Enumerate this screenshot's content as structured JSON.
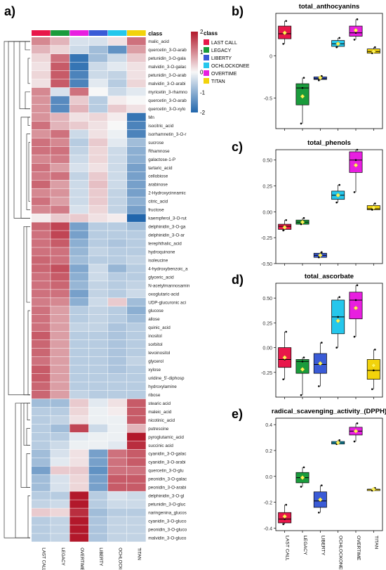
{
  "figure": {
    "panel_labels": [
      "a)",
      "b)",
      "c)",
      "d)",
      "e)"
    ],
    "groups": [
      "LAST CALL",
      "LEGACY",
      "LIBERTY",
      "OCHLOCKONEE",
      "OVERTIME",
      "TITAN"
    ],
    "group_colors": {
      "LAST CALL": "#E8174A",
      "LEGACY": "#1A9B3C",
      "LIBERTY": "#3A5BD6",
      "OCHLOCKONEE": "#25C7EC",
      "OVERTIME": "#E81FE0",
      "TITAN": "#F2D30B"
    },
    "legend_title": "class",
    "colorbar": {
      "ticks": [
        "2",
        "1",
        "0",
        "-1",
        "-2"
      ],
      "high": "#B2182B",
      "mid": "#F7F7F7",
      "low": "#2166AC"
    }
  },
  "chart_data": [
    {
      "type": "heatmap",
      "panel": "a)",
      "columns": [
        "LAST CALL",
        "LEGACY",
        "OVERTIME",
        "LIBERTY",
        "OCHLOCKONEE",
        "TITAN"
      ],
      "column_annotation_label": "class",
      "column_annotation_colors": [
        "#E8174A",
        "#1A9B3C",
        "#E81FE0",
        "#3A5BD6",
        "#25C7EC",
        "#F2D30B"
      ],
      "rows": [
        "malic_acid",
        "quercetin_3-O-arab",
        "petunidin_3-O-gala",
        "malvidin_3-O-galac",
        "petunidin_3-O-arab",
        "malvidin_3-O-arabi",
        "myricetin_3-rhamno",
        "quercetin_3-O-arab",
        "quercetin_3-O-xylo",
        "Mn",
        "isocitric_acid",
        "isorhamnetin_3-O-r",
        "sucrose",
        "Rhamnose",
        "galactose-1-P",
        "tartaric_acid",
        "cellobiose",
        "arabinose",
        "2-Hydroxycinnamic",
        "citric_acid",
        "fructose",
        "kaempferol_3-O-rut",
        "delphinidin_3-O-ga",
        "delphinidin_3-O-ar",
        "terephthalic_acid",
        "hydroquinone",
        "isoleucine",
        "4-hydroxybenzoic_a",
        "glyceric_acid",
        "N-acetylmannosamin",
        "oxoglutaric-acid",
        "UDP-glucuronic aci",
        "glucose",
        "allose",
        "quinic_acid",
        "inositol",
        "sorbitol",
        "levoinositol",
        "glycerol",
        "xylose",
        "uridine_5'-diphosp",
        "hydroxylamine",
        "ribose",
        "stearic acid",
        "maleic_acid",
        "nicotinic_acid",
        "putrescine",
        "pyroglutamic_acid",
        "succinic acid",
        "cyanidin_3-O-galac",
        "cyanidin_3-O-arabi",
        "quercetin_3-O-glu",
        "peonidin_3-O-galac",
        "peonidin_3-O-arabi",
        "delphinidin_3-O-gl",
        "petunidin_3-O-gluc",
        "naringenina_glucos",
        "cyanidin_3-O-gluco",
        "peonidin_3-O-gluco",
        "malvidin_3-O-gluco"
      ],
      "values": [
        [
          1.0,
          0.6,
          -0.3,
          -0.3,
          0.2,
          1.2
        ],
        [
          0.6,
          0.3,
          -0.4,
          -0.8,
          -1.4,
          0.8
        ],
        [
          0.3,
          1.2,
          -1.8,
          -0.8,
          -0.4,
          0.4
        ],
        [
          0.2,
          1.4,
          -1.8,
          -0.4,
          -0.2,
          0.2
        ],
        [
          0.3,
          1.4,
          -1.6,
          -0.4,
          -0.5,
          0.2
        ],
        [
          0.2,
          1.4,
          -1.6,
          -0.2,
          -0.6,
          0.3
        ],
        [
          1.0,
          -0.3,
          1.2,
          0.0,
          -0.4,
          -0.2
        ],
        [
          0.9,
          -1.5,
          0.4,
          -0.6,
          0.1,
          0.0
        ],
        [
          0.9,
          -1.5,
          0.6,
          -0.6,
          0.4,
          0.2
        ],
        [
          0.9,
          0.6,
          0.2,
          0.3,
          0.1,
          -1.8
        ],
        [
          1.2,
          0.6,
          0.4,
          0.2,
          0.0,
          -1.6
        ],
        [
          0.9,
          1.2,
          -0.4,
          0.2,
          -0.1,
          -1.6
        ],
        [
          1.2,
          1.0,
          -0.6,
          0.4,
          -0.2,
          -0.8
        ],
        [
          1.2,
          1.2,
          -0.5,
          0.3,
          -0.4,
          -1.0
        ],
        [
          1.0,
          1.1,
          -0.4,
          0.3,
          -0.4,
          -1.0
        ],
        [
          1.2,
          0.8,
          -0.3,
          0.2,
          -0.4,
          -1.2
        ],
        [
          1.1,
          1.2,
          -0.5,
          0.4,
          -0.4,
          -1.2
        ],
        [
          1.3,
          0.8,
          -0.4,
          0.5,
          -0.4,
          -1.2
        ],
        [
          1.0,
          0.9,
          -0.4,
          0.4,
          -0.5,
          -1.2
        ],
        [
          1.2,
          0.8,
          -0.4,
          0.4,
          -0.5,
          -1.0
        ],
        [
          1.0,
          1.1,
          -0.3,
          0.3,
          -0.5,
          -1.2
        ],
        [
          0.1,
          0.4,
          0.4,
          0.2,
          0.1,
          -2.0
        ],
        [
          1.3,
          1.6,
          -1.2,
          -0.6,
          -0.6,
          -0.8
        ],
        [
          1.2,
          1.6,
          -1.2,
          -0.6,
          -0.6,
          -0.6
        ],
        [
          1.2,
          1.4,
          -1.0,
          -0.6,
          -0.7,
          -0.6
        ],
        [
          1.2,
          1.2,
          -0.9,
          -0.5,
          -0.6,
          -0.6
        ],
        [
          1.3,
          1.2,
          -0.8,
          -0.6,
          -0.6,
          -0.5
        ],
        [
          1.3,
          1.5,
          -1.1,
          -0.4,
          -0.9,
          -0.6
        ],
        [
          1.2,
          1.4,
          -1.0,
          -0.4,
          -0.6,
          -0.6
        ],
        [
          1.2,
          1.3,
          -0.9,
          -0.5,
          -0.6,
          -0.5
        ],
        [
          1.2,
          1.2,
          -1.2,
          -0.5,
          -0.6,
          -0.4
        ],
        [
          1.1,
          1.0,
          -1.0,
          -0.4,
          0.4,
          -0.8
        ],
        [
          1.2,
          0.8,
          -0.6,
          -0.5,
          -0.6,
          -1.0
        ],
        [
          1.2,
          0.8,
          -0.6,
          -0.5,
          -0.6,
          -0.8
        ],
        [
          1.2,
          0.8,
          -0.5,
          -0.5,
          -0.7,
          -0.6
        ],
        [
          1.4,
          0.8,
          -0.6,
          -0.6,
          -0.7,
          -0.6
        ],
        [
          1.3,
          0.8,
          -0.6,
          -0.6,
          -0.7,
          -0.6
        ],
        [
          1.3,
          0.8,
          -0.6,
          -0.6,
          -0.7,
          -0.6
        ],
        [
          1.2,
          0.8,
          -0.6,
          -0.6,
          -0.7,
          -0.5
        ],
        [
          1.4,
          0.8,
          -0.6,
          -0.6,
          -0.7,
          -0.6
        ],
        [
          1.4,
          0.8,
          -0.6,
          -0.6,
          -0.6,
          -0.6
        ],
        [
          1.3,
          0.8,
          -0.6,
          -0.6,
          -0.6,
          -0.6
        ],
        [
          1.3,
          0.8,
          -0.5,
          -0.6,
          -0.6,
          -0.6
        ],
        [
          -0.8,
          -0.8,
          0.4,
          -0.2,
          0.2,
          1.4
        ],
        [
          -0.6,
          -0.6,
          0.3,
          -0.1,
          0.1,
          1.4
        ],
        [
          -0.6,
          -0.5,
          0.2,
          -0.1,
          -0.1,
          1.4
        ],
        [
          -0.6,
          -0.8,
          1.6,
          -0.4,
          -0.1,
          0.6
        ],
        [
          -0.6,
          -0.6,
          -0.2,
          -0.1,
          -0.1,
          2.0
        ],
        [
          -0.6,
          -0.4,
          -0.1,
          -0.1,
          -0.2,
          1.8
        ],
        [
          -0.8,
          -0.3,
          0.2,
          -1.2,
          1.2,
          1.4
        ],
        [
          -0.8,
          -0.2,
          0.2,
          -1.2,
          1.2,
          1.4
        ],
        [
          -1.2,
          0.4,
          0.4,
          -1.4,
          1.2,
          1.2
        ],
        [
          -0.8,
          -0.3,
          0.3,
          -1.2,
          1.4,
          1.4
        ],
        [
          -0.8,
          -0.3,
          0.3,
          -1.2,
          1.4,
          1.4
        ],
        [
          -0.6,
          -0.6,
          2.0,
          -0.6,
          -0.3,
          -0.4
        ],
        [
          -0.5,
          -0.4,
          2.0,
          -0.6,
          -0.4,
          -0.4
        ],
        [
          0.4,
          0.3,
          1.8,
          -0.8,
          -0.6,
          -0.6
        ],
        [
          -0.6,
          -0.5,
          2.0,
          -0.7,
          -0.5,
          -0.5
        ],
        [
          -0.6,
          -0.5,
          2.0,
          -0.7,
          -0.5,
          -0.5
        ],
        [
          -0.6,
          -0.5,
          2.0,
          -0.7,
          -0.5,
          -0.5
        ]
      ]
    },
    {
      "type": "box",
      "panel": "b)",
      "title": "total_anthocyanins",
      "ylim": [
        -0.86,
        0.5
      ],
      "yticks": [
        0.0,
        -0.5
      ],
      "groups": [
        {
          "name": "LAST CALL",
          "min": 0.14,
          "q1": 0.2,
          "median": 0.26,
          "q3": 0.35,
          "max": 0.41,
          "mean": 0.27,
          "points": [
            0.14,
            0.26,
            0.41
          ]
        },
        {
          "name": "LEGACY",
          "min": -0.8,
          "q1": -0.58,
          "median": -0.38,
          "q3": -0.33,
          "max": -0.26,
          "mean": -0.48,
          "points": [
            -0.8,
            -0.38,
            -0.26
          ]
        },
        {
          "name": "LIBERTY",
          "min": -0.29,
          "q1": -0.28,
          "median": -0.27,
          "q3": -0.25,
          "max": -0.24,
          "mean": -0.26,
          "points": [
            -0.29,
            -0.27,
            -0.24
          ]
        },
        {
          "name": "OCHLOCKONEE",
          "min": 0.1,
          "q1": 0.11,
          "median": 0.14,
          "q3": 0.18,
          "max": 0.21,
          "mean": 0.14,
          "points": [
            0.1,
            0.14,
            0.21
          ]
        },
        {
          "name": "OVERTIME",
          "min": 0.19,
          "q1": 0.23,
          "median": 0.27,
          "q3": 0.35,
          "max": 0.43,
          "mean": 0.3,
          "points": [
            0.19,
            0.27,
            0.43
          ]
        },
        {
          "name": "TITAN",
          "min": 0.03,
          "q1": 0.03,
          "median": 0.05,
          "q3": 0.08,
          "max": 0.1,
          "mean": 0.05,
          "points": [
            0.03,
            0.05,
            0.1
          ]
        }
      ]
    },
    {
      "type": "box",
      "panel": "c)",
      "title": "total_phenols",
      "ylim": [
        -0.5,
        0.6
      ],
      "yticks": [
        0.5,
        0.25,
        0.0,
        -0.25,
        -0.5
      ],
      "ytick_labels": [
        "0.50",
        "0.25",
        "0.00",
        "-0.25",
        "-0.50"
      ],
      "groups": [
        {
          "name": "LAST CALL",
          "min": -0.18,
          "q1": -0.17,
          "median": -0.14,
          "q3": -0.12,
          "max": -0.08,
          "mean": -0.15,
          "points": [
            -0.18,
            -0.14,
            -0.08
          ]
        },
        {
          "name": "LEGACY",
          "min": -0.12,
          "q1": -0.12,
          "median": -0.1,
          "q3": -0.08,
          "max": -0.06,
          "mean": -0.1,
          "points": [
            -0.12,
            -0.1,
            -0.06
          ]
        },
        {
          "name": "LIBERTY",
          "min": -0.44,
          "q1": -0.44,
          "median": -0.42,
          "q3": -0.4,
          "max": -0.39,
          "mean": -0.42,
          "points": [
            -0.44,
            -0.42,
            -0.39
          ]
        },
        {
          "name": "OCHLOCKONEE",
          "min": 0.09,
          "q1": 0.12,
          "median": 0.16,
          "q3": 0.2,
          "max": 0.26,
          "mean": 0.16,
          "points": [
            0.09,
            0.16,
            0.26
          ]
        },
        {
          "name": "OVERTIME",
          "min": 0.19,
          "q1": 0.38,
          "median": 0.5,
          "q3": 0.58,
          "max": 0.6,
          "mean": 0.45,
          "points": [
            0.19,
            0.5,
            0.6
          ]
        },
        {
          "name": "TITAN",
          "min": 0.02,
          "q1": 0.02,
          "median": 0.03,
          "q3": 0.06,
          "max": 0.08,
          "mean": 0.04,
          "points": [
            0.02,
            0.03,
            0.08
          ]
        }
      ]
    },
    {
      "type": "box",
      "panel": "d)",
      "title": "total_ascorbate",
      "ylim": [
        -0.5,
        0.65
      ],
      "yticks": [
        0.5,
        0.25,
        0.0,
        -0.25
      ],
      "ytick_labels": [
        "0.50",
        "0.25",
        "0.00",
        "-0.25"
      ],
      "groups": [
        {
          "name": "LAST CALL",
          "min": -0.32,
          "q1": -0.2,
          "median": -0.12,
          "q3": 0.0,
          "max": 0.16,
          "mean": -0.1,
          "points": [
            -0.32,
            -0.12,
            0.16
          ]
        },
        {
          "name": "LEGACY",
          "min": -0.48,
          "q1": -0.26,
          "median": -0.14,
          "q3": -0.12,
          "max": -0.1,
          "mean": -0.22,
          "points": [
            -0.48,
            -0.14,
            -0.1
          ]
        },
        {
          "name": "LIBERTY",
          "min": -0.39,
          "q1": -0.26,
          "median": -0.17,
          "q3": -0.06,
          "max": 0.05,
          "mean": -0.16,
          "points": [
            -0.39,
            -0.17,
            0.05
          ]
        },
        {
          "name": "OCHLOCKONEE",
          "min": 0.0,
          "q1": 0.14,
          "median": 0.31,
          "q3": 0.48,
          "max": 0.51,
          "mean": 0.27,
          "points": [
            0.0,
            0.31,
            0.51
          ]
        },
        {
          "name": "OVERTIME",
          "min": 0.11,
          "q1": 0.29,
          "median": 0.48,
          "q3": 0.56,
          "max": 0.63,
          "mean": 0.4,
          "points": [
            0.11,
            0.48,
            0.63
          ]
        },
        {
          "name": "TITAN",
          "min": -0.42,
          "q1": -0.32,
          "median": -0.23,
          "q3": -0.12,
          "max": -0.02,
          "mean": -0.18,
          "points": [
            -0.42,
            -0.23,
            -0.02
          ]
        }
      ]
    },
    {
      "type": "box",
      "panel": "e)",
      "title": "radical_scavenging_activity_(DPPH)",
      "ylim": [
        -0.42,
        0.45
      ],
      "yticks": [
        0.4,
        0.2,
        0.0,
        -0.2,
        -0.4
      ],
      "ytick_labels": [
        "0.4",
        "0.2",
        "0.0",
        "-0.2",
        "-0.4"
      ],
      "xlabels": [
        "LAST CALL",
        "LEGACY",
        "LIBERTY",
        "OCHLOCKONEE",
        "OVERTIME",
        "TITAN"
      ],
      "groups": [
        {
          "name": "LAST CALL",
          "min": -0.37,
          "q1": -0.36,
          "median": -0.33,
          "q3": -0.28,
          "max": -0.22,
          "mean": -0.31,
          "points": [
            -0.37,
            -0.33,
            -0.22
          ]
        },
        {
          "name": "LEGACY",
          "min": -0.08,
          "q1": -0.05,
          "median": -0.01,
          "q3": 0.03,
          "max": 0.07,
          "mean": -0.01,
          "points": [
            -0.08,
            -0.01,
            0.07
          ]
        },
        {
          "name": "LIBERTY",
          "min": -0.28,
          "q1": -0.24,
          "median": -0.19,
          "q3": -0.12,
          "max": -0.07,
          "mean": -0.18,
          "points": [
            -0.28,
            -0.19,
            -0.07
          ]
        },
        {
          "name": "OCHLOCKONEE",
          "min": 0.25,
          "q1": 0.25,
          "median": 0.26,
          "q3": 0.27,
          "max": 0.28,
          "mean": 0.26,
          "points": [
            0.25,
            0.26,
            0.28
          ]
        },
        {
          "name": "OVERTIME",
          "min": 0.27,
          "q1": 0.32,
          "median": 0.35,
          "q3": 0.38,
          "max": 0.41,
          "mean": 0.35,
          "points": [
            0.27,
            0.35,
            0.41
          ]
        },
        {
          "name": "TITAN",
          "min": -0.11,
          "q1": -0.11,
          "median": -0.1,
          "q3": -0.1,
          "max": -0.09,
          "mean": -0.1,
          "points": [
            -0.11,
            -0.1,
            -0.09
          ]
        }
      ]
    }
  ]
}
